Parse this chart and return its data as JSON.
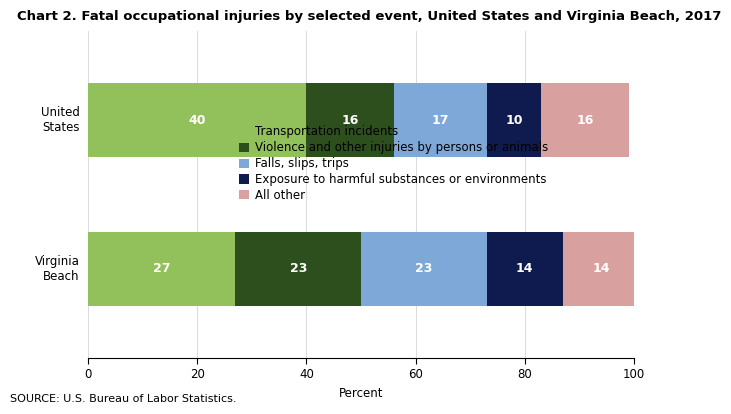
{
  "title": "Chart 2. Fatal occupational injuries by selected event, United States and Virginia Beach, 2017",
  "categories": [
    "United\nStates",
    "Virginia\nBeach"
  ],
  "series": [
    {
      "label": "Transportation incidents",
      "values": [
        40,
        27
      ],
      "color": "#92c05a",
      "hatch": "...."
    },
    {
      "label": "Violence and other injuries by persons or animals",
      "values": [
        16,
        23
      ],
      "color": "#2d4f1e",
      "hatch": "...."
    },
    {
      "label": "Falls, slips, trips",
      "values": [
        17,
        23
      ],
      "color": "#7ea8d8",
      "hatch": "...."
    },
    {
      "label": "Exposure to harmful substances or environments",
      "values": [
        10,
        14
      ],
      "color": "#0f1a4f",
      "hatch": ""
    },
    {
      "label": "All other",
      "values": [
        16,
        14
      ],
      "color": "#d9a0a0",
      "hatch": "...."
    }
  ],
  "xlabel": "Percent",
  "xlim": [
    0,
    100
  ],
  "xticks": [
    0,
    20,
    40,
    60,
    80,
    100
  ],
  "source": "SOURCE: U.S. Bureau of Labor Statistics.",
  "bar_height": 0.5,
  "label_fontsize": 9,
  "title_fontsize": 9.5,
  "tick_fontsize": 8.5,
  "legend_fontsize": 8.5,
  "source_fontsize": 8
}
